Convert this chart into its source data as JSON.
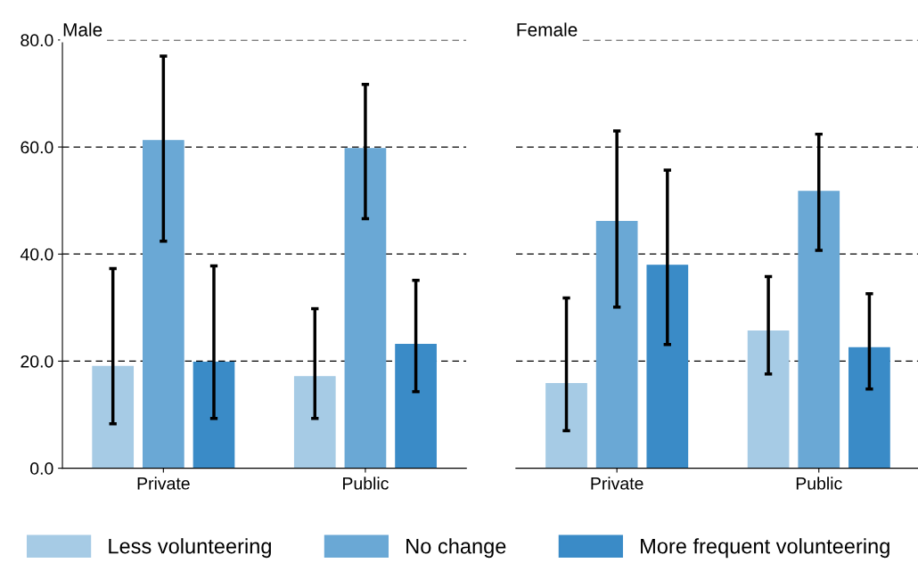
{
  "chart_data": [
    {
      "type": "bar",
      "title": "Male",
      "categories": [
        "Private",
        "Public"
      ],
      "ylim": [
        0,
        80
      ],
      "yticks": [
        {
          "value": 0,
          "label": "0.0"
        },
        {
          "value": 20,
          "label": "20.0"
        },
        {
          "value": 40,
          "label": "40.0"
        },
        {
          "value": 60,
          "label": "60.0"
        },
        {
          "value": 80,
          "label": "80.0"
        }
      ],
      "grid": "y",
      "legend": "bottom",
      "series": [
        {
          "name": "Less volunteering",
          "color": "#a6cbe5",
          "values": [
            19.0,
            17.1
          ],
          "errors": [
            [
              8.3,
              37.3
            ],
            [
              9.3,
              29.8
            ]
          ]
        },
        {
          "name": "No change",
          "color": "#6aa8d5",
          "values": [
            61.2,
            59.7
          ],
          "errors": [
            [
              42.4,
              77.0
            ],
            [
              46.6,
              71.7
            ]
          ]
        },
        {
          "name": "More frequent volunteering",
          "color": "#3a8bc7",
          "values": [
            19.8,
            23.1
          ],
          "errors": [
            [
              9.3,
              37.8
            ],
            [
              14.3,
              35.1
            ]
          ]
        }
      ]
    },
    {
      "type": "bar",
      "title": "Female",
      "categories": [
        "Private",
        "Public"
      ],
      "ylim": [
        0,
        80
      ],
      "yticks": [
        {
          "value": 0,
          "label": null
        },
        {
          "value": 20,
          "label": null
        },
        {
          "value": 40,
          "label": null
        },
        {
          "value": 60,
          "label": null
        },
        {
          "value": 80,
          "label": null
        }
      ],
      "grid": "y",
      "tick_labels": "x",
      "series": [
        {
          "color": "#a6cbe5",
          "values": [
            15.8,
            25.6
          ],
          "errors": [
            [
              7.0,
              31.8
            ],
            [
              17.6,
              35.8
            ]
          ]
        },
        {
          "color": "#6aa8d5",
          "values": [
            46.1,
            51.7
          ],
          "errors": [
            [
              30.1,
              63.0
            ],
            [
              40.7,
              62.4
            ]
          ]
        },
        {
          "color": "#3a8bc7",
          "values": [
            37.9,
            22.5
          ],
          "errors": [
            [
              23.1,
              55.7
            ],
            [
              14.8,
              32.6
            ]
          ]
        }
      ]
    }
  ]
}
